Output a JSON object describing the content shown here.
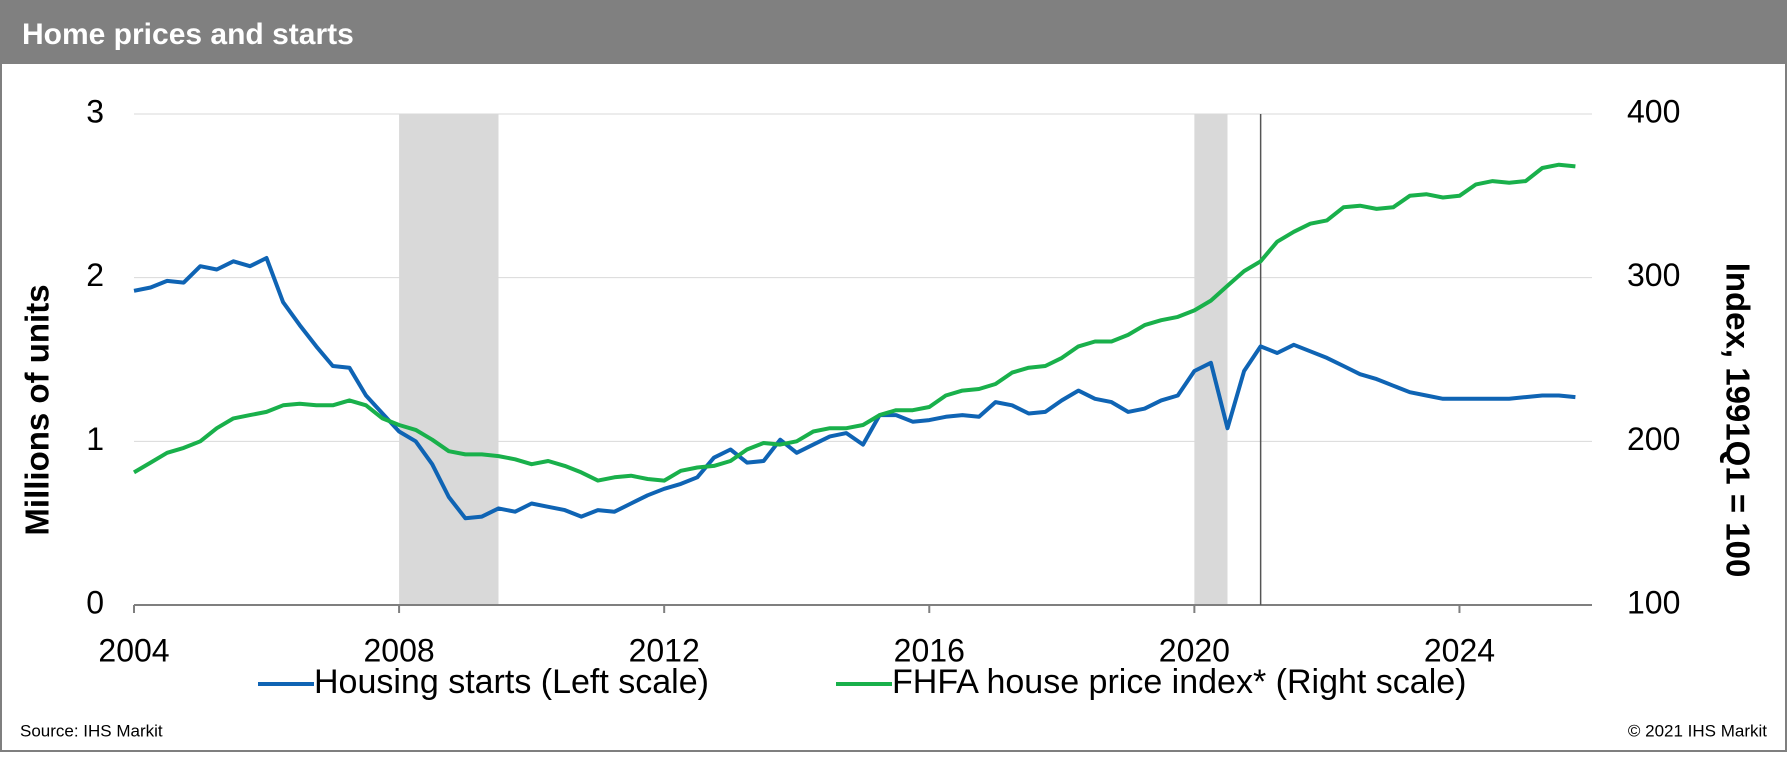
{
  "chart_data": {
    "type": "line",
    "title": "Home prices and starts",
    "ylabel": "Millions of units",
    "y2label": "Index, 1991Q1 = 100",
    "source": "Source: IHS Markit",
    "copyright": "© 2021 IHS Markit",
    "x": [
      2004,
      2004.25,
      2004.5,
      2004.75,
      2005,
      2005.25,
      2005.5,
      2005.75,
      2006,
      2006.25,
      2006.5,
      2006.75,
      2007,
      2007.25,
      2007.5,
      2007.75,
      2008,
      2008.25,
      2008.5,
      2008.75,
      2009,
      2009.25,
      2009.5,
      2009.75,
      2010,
      2010.25,
      2010.5,
      2010.75,
      2011,
      2011.25,
      2011.5,
      2011.75,
      2012,
      2012.25,
      2012.5,
      2012.75,
      2013,
      2013.25,
      2013.5,
      2013.75,
      2014,
      2014.25,
      2014.5,
      2014.75,
      2015,
      2015.25,
      2015.5,
      2015.75,
      2016,
      2016.25,
      2016.5,
      2016.75,
      2017,
      2017.25,
      2017.5,
      2017.75,
      2018,
      2018.25,
      2018.5,
      2018.75,
      2019,
      2019.25,
      2019.5,
      2019.75,
      2020,
      2020.25,
      2020.5,
      2020.75,
      2021,
      2021.25,
      2021.5,
      2021.75,
      2022,
      2022.25,
      2022.5,
      2022.75,
      2023,
      2023.25,
      2023.5,
      2023.75,
      2024,
      2024.25,
      2024.5,
      2024.75,
      2025,
      2025.25,
      2025.5,
      2025.75
    ],
    "series": [
      {
        "name": "Housing starts (Left scale)",
        "color": "#0f64b4",
        "axis": "y",
        "values": [
          1.92,
          1.94,
          1.98,
          1.97,
          2.07,
          2.05,
          2.1,
          2.07,
          2.12,
          1.85,
          1.71,
          1.58,
          1.46,
          1.45,
          1.28,
          1.17,
          1.06,
          1.0,
          0.86,
          0.66,
          0.53,
          0.54,
          0.59,
          0.57,
          0.62,
          0.6,
          0.58,
          0.54,
          0.58,
          0.57,
          0.62,
          0.67,
          0.71,
          0.74,
          0.78,
          0.9,
          0.95,
          0.87,
          0.88,
          1.01,
          0.93,
          0.98,
          1.03,
          1.05,
          0.98,
          1.16,
          1.16,
          1.12,
          1.13,
          1.15,
          1.16,
          1.15,
          1.24,
          1.22,
          1.17,
          1.18,
          1.25,
          1.31,
          1.26,
          1.24,
          1.18,
          1.2,
          1.25,
          1.28,
          1.43,
          1.48,
          1.08,
          1.43,
          1.58,
          1.54,
          1.59,
          1.55,
          1.51,
          1.46,
          1.41,
          1.38,
          1.34,
          1.3,
          1.28,
          1.26,
          1.26,
          1.26,
          1.26,
          1.26,
          1.27,
          1.28,
          1.28,
          1.27
        ]
      },
      {
        "name": "FHFA house price index* (Right scale)",
        "color": "#19b04b",
        "axis": "y2",
        "values": [
          181,
          187,
          193,
          196,
          200,
          208,
          214,
          216,
          218,
          222,
          223,
          222,
          222,
          225,
          222,
          214,
          210,
          207,
          201,
          194,
          192,
          192,
          191,
          189,
          186,
          188,
          185,
          181,
          176,
          178,
          179,
          177,
          176,
          182,
          184,
          185,
          188,
          195,
          199,
          198,
          200,
          206,
          208,
          208,
          210,
          216,
          219,
          219,
          221,
          228,
          231,
          232,
          235,
          242,
          245,
          246,
          251,
          258,
          261,
          261,
          265,
          271,
          274,
          276,
          280,
          286,
          295,
          304,
          310,
          322,
          328,
          333,
          335,
          343,
          344,
          342,
          343,
          350,
          351,
          349,
          350,
          357,
          359,
          358,
          359,
          367,
          369,
          368
        ]
      }
    ],
    "xlim": [
      2004,
      2026
    ],
    "xticks": [
      2004,
      2008,
      2012,
      2016,
      2020,
      2024
    ],
    "ylim": [
      0,
      3
    ],
    "yticks": [
      0,
      1,
      2,
      3
    ],
    "y2lim": [
      100,
      400
    ],
    "y2ticks": [
      100,
      200,
      300,
      400
    ],
    "shaded_ranges": [
      [
        2008,
        2009.5
      ],
      [
        2020,
        2020.5
      ]
    ],
    "marker_x": 2021,
    "grid": true,
    "legend": "bottom"
  }
}
